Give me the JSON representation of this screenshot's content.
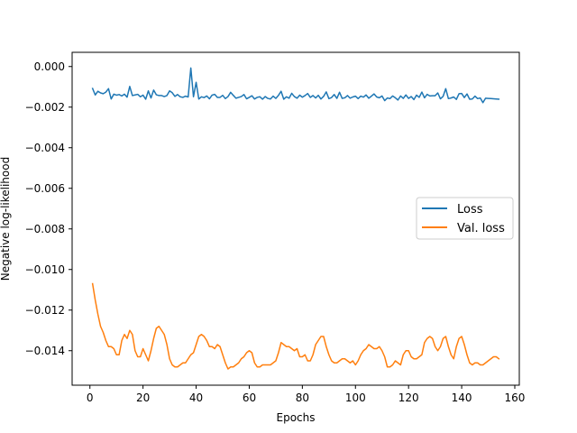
{
  "chart_data": {
    "type": "line",
    "xlabel": "Epochs",
    "ylabel": "Negative log-likelihood",
    "xlim": [
      -6.7,
      161.7
    ],
    "ylim": [
      -0.0157,
      0.0007
    ],
    "xticks": [
      0,
      20,
      40,
      60,
      80,
      100,
      120,
      140,
      160
    ],
    "yticks": [
      0.0,
      -0.002,
      -0.004,
      -0.006,
      -0.008,
      -0.01,
      -0.012,
      -0.014
    ],
    "xtick_labels": [
      "0",
      "20",
      "40",
      "60",
      "80",
      "100",
      "120",
      "140",
      "160"
    ],
    "ytick_labels": [
      "0.000",
      "−0.002",
      "−0.004",
      "−0.006",
      "−0.008",
      "−0.010",
      "−0.012",
      "−0.014"
    ],
    "grid": false,
    "legend_position": "center-right",
    "series": [
      {
        "name": "Loss",
        "color": "#1f77b4",
        "x": [
          1,
          2,
          3,
          4,
          5,
          6,
          7,
          8,
          9,
          10,
          11,
          12,
          13,
          14,
          15,
          16,
          17,
          18,
          19,
          20,
          21,
          22,
          23,
          24,
          25,
          26,
          27,
          28,
          29,
          30,
          31,
          32,
          33,
          34,
          35,
          36,
          37,
          38,
          39,
          40,
          41,
          42,
          43,
          44,
          45,
          46,
          47,
          48,
          49,
          50,
          51,
          52,
          53,
          54,
          55,
          56,
          57,
          58,
          59,
          60,
          61,
          62,
          63,
          64,
          65,
          66,
          67,
          68,
          69,
          70,
          71,
          72,
          73,
          74,
          75,
          76,
          77,
          78,
          79,
          80,
          81,
          82,
          83,
          84,
          85,
          86,
          87,
          88,
          89,
          90,
          91,
          92,
          93,
          94,
          95,
          96,
          97,
          98,
          99,
          100,
          101,
          102,
          103,
          104,
          105,
          106,
          107,
          108,
          109,
          110,
          111,
          112,
          113,
          114,
          115,
          116,
          117,
          118,
          119,
          120,
          121,
          122,
          123,
          124,
          125,
          126,
          127,
          128,
          129,
          130,
          131,
          132,
          133,
          134,
          135,
          136,
          137,
          138,
          139,
          140,
          141,
          142,
          143,
          144,
          145,
          146,
          147,
          148,
          149,
          150,
          151,
          152,
          153,
          154
        ],
        "values": [
          -0.00108,
          -0.0014,
          -0.00122,
          -0.0013,
          -0.00134,
          -0.00126,
          -0.00109,
          -0.0016,
          -0.00136,
          -0.00141,
          -0.00138,
          -0.00145,
          -0.00136,
          -0.00151,
          -0.00098,
          -0.00143,
          -0.0014,
          -0.00137,
          -0.00149,
          -0.00141,
          -0.00161,
          -0.0012,
          -0.00155,
          -0.00116,
          -0.00139,
          -0.00143,
          -0.00143,
          -0.00148,
          -0.00143,
          -0.0012,
          -0.00129,
          -0.00147,
          -0.00138,
          -0.00149,
          -0.00152,
          -0.00146,
          -0.0015,
          -7e-05,
          -0.00149,
          -0.00078,
          -0.0016,
          -0.00149,
          -0.00153,
          -0.00145,
          -0.00159,
          -0.00141,
          -0.00137,
          -0.00152,
          -0.00152,
          -0.00142,
          -0.00158,
          -0.00148,
          -0.00127,
          -0.00142,
          -0.00156,
          -0.00152,
          -0.00148,
          -0.00138,
          -0.00159,
          -0.00152,
          -0.00144,
          -0.0016,
          -0.00152,
          -0.00149,
          -0.00161,
          -0.00148,
          -0.00157,
          -0.0016,
          -0.00146,
          -0.00157,
          -0.00142,
          -0.00122,
          -0.00161,
          -0.00149,
          -0.00156,
          -0.00132,
          -0.00148,
          -0.00156,
          -0.00141,
          -0.00151,
          -0.00143,
          -0.00133,
          -0.00152,
          -0.00143,
          -0.00155,
          -0.00142,
          -0.0016,
          -0.00147,
          -0.00125,
          -0.00158,
          -0.00153,
          -0.00138,
          -0.00157,
          -0.00127,
          -0.00157,
          -0.00154,
          -0.00143,
          -0.00156,
          -0.0015,
          -0.00146,
          -0.00158,
          -0.00146,
          -0.00151,
          -0.0014,
          -0.00156,
          -0.00146,
          -0.00135,
          -0.0015,
          -0.00154,
          -0.00145,
          -0.00168,
          -0.00155,
          -0.00158,
          -0.00145,
          -0.00154,
          -0.00165,
          -0.00145,
          -0.00157,
          -0.0014,
          -0.00157,
          -0.00148,
          -0.00163,
          -0.00141,
          -0.00152,
          -0.00126,
          -0.00154,
          -0.00137,
          -0.00145,
          -0.00144,
          -0.00144,
          -0.0013,
          -0.00159,
          -0.00147,
          -0.00109,
          -0.00158,
          -0.00155,
          -0.0015,
          -0.00162,
          -0.00134,
          -0.00133,
          -0.00153,
          -0.00135,
          -0.00161,
          -0.0016,
          -0.00146,
          -0.00158,
          -0.00155,
          -0.00178,
          -0.00156,
          -0.00157,
          -0.00158,
          -0.00159,
          -0.0016,
          -0.00161
        ]
      },
      {
        "name": "Val. loss",
        "color": "#ff7f0e",
        "x": [
          1,
          2,
          3,
          4,
          5,
          6,
          7,
          8,
          9,
          10,
          11,
          12,
          13,
          14,
          15,
          16,
          17,
          18,
          19,
          20,
          21,
          22,
          23,
          24,
          25,
          26,
          27,
          28,
          29,
          30,
          31,
          32,
          33,
          34,
          35,
          36,
          37,
          38,
          39,
          40,
          41,
          42,
          43,
          44,
          45,
          46,
          47,
          48,
          49,
          50,
          51,
          52,
          53,
          54,
          55,
          56,
          57,
          58,
          59,
          60,
          61,
          62,
          63,
          64,
          65,
          66,
          67,
          68,
          69,
          70,
          71,
          72,
          73,
          74,
          75,
          76,
          77,
          78,
          79,
          80,
          81,
          82,
          83,
          84,
          85,
          86,
          87,
          88,
          89,
          90,
          91,
          92,
          93,
          94,
          95,
          96,
          97,
          98,
          99,
          100,
          101,
          102,
          103,
          104,
          105,
          106,
          107,
          108,
          109,
          110,
          111,
          112,
          113,
          114,
          115,
          116,
          117,
          118,
          119,
          120,
          121,
          122,
          123,
          124,
          125,
          126,
          127,
          128,
          129,
          130,
          131,
          132,
          133,
          134,
          135,
          136,
          137,
          138,
          139,
          140,
          141,
          142,
          143,
          144,
          145,
          146,
          147,
          148,
          149,
          150,
          151,
          152,
          153,
          154
        ],
        "values": [
          -0.0107,
          -0.0115,
          -0.0122,
          -0.0128,
          -0.0131,
          -0.0135,
          -0.0138,
          -0.0138,
          -0.0139,
          -0.0142,
          -0.0142,
          -0.0135,
          -0.0132,
          -0.0134,
          -0.013,
          -0.0132,
          -0.014,
          -0.0143,
          -0.0143,
          -0.0139,
          -0.0142,
          -0.0145,
          -0.014,
          -0.0134,
          -0.0129,
          -0.0128,
          -0.013,
          -0.0132,
          -0.0137,
          -0.0144,
          -0.0147,
          -0.0148,
          -0.0148,
          -0.0147,
          -0.0146,
          -0.0146,
          -0.0144,
          -0.0142,
          -0.0141,
          -0.0137,
          -0.0133,
          -0.0132,
          -0.0133,
          -0.0135,
          -0.0138,
          -0.0138,
          -0.0139,
          -0.0137,
          -0.0138,
          -0.0142,
          -0.0146,
          -0.0149,
          -0.0148,
          -0.0148,
          -0.0147,
          -0.0146,
          -0.0144,
          -0.0143,
          -0.0141,
          -0.014,
          -0.0141,
          -0.0146,
          -0.0148,
          -0.0148,
          -0.0147,
          -0.0147,
          -0.0147,
          -0.0147,
          -0.0146,
          -0.0145,
          -0.0141,
          -0.0136,
          -0.0137,
          -0.0138,
          -0.0138,
          -0.0139,
          -0.014,
          -0.0139,
          -0.0143,
          -0.0143,
          -0.0142,
          -0.0145,
          -0.0145,
          -0.0142,
          -0.0137,
          -0.0135,
          -0.0133,
          -0.0133,
          -0.0138,
          -0.0142,
          -0.0145,
          -0.0146,
          -0.0146,
          -0.0145,
          -0.0144,
          -0.0144,
          -0.0145,
          -0.0146,
          -0.0145,
          -0.0147,
          -0.0145,
          -0.0142,
          -0.014,
          -0.0139,
          -0.0137,
          -0.0138,
          -0.0139,
          -0.0139,
          -0.0138,
          -0.014,
          -0.0143,
          -0.0148,
          -0.0148,
          -0.0147,
          -0.0145,
          -0.0146,
          -0.0147,
          -0.0142,
          -0.014,
          -0.014,
          -0.0143,
          -0.0144,
          -0.0144,
          -0.0143,
          -0.0142,
          -0.0136,
          -0.0134,
          -0.0133,
          -0.0134,
          -0.0138,
          -0.014,
          -0.0138,
          -0.0134,
          -0.0133,
          -0.0138,
          -0.0142,
          -0.0144,
          -0.0138,
          -0.0134,
          -0.0133,
          -0.0137,
          -0.0142,
          -0.0146,
          -0.0147,
          -0.0146,
          -0.0146,
          -0.0147,
          -0.0147,
          -0.0146,
          -0.0145,
          -0.0144,
          -0.0143,
          -0.0143,
          -0.0144
        ]
      }
    ]
  }
}
